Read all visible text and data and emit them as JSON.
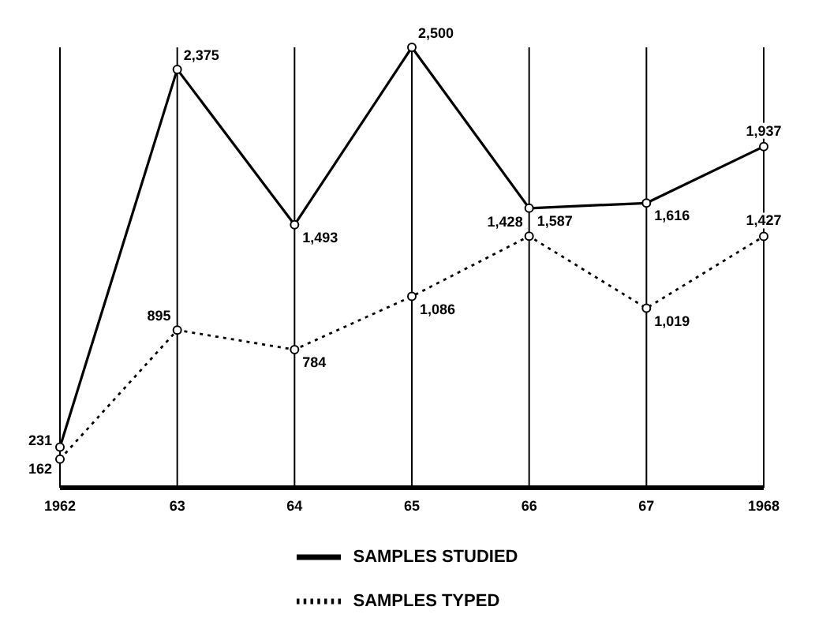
{
  "chart_data": {
    "type": "line",
    "categories": [
      "1962",
      "63",
      "64",
      "65",
      "66",
      "67",
      "1968"
    ],
    "series": [
      {
        "name": "SAMPLES STUDIED",
        "color": "#000000",
        "line_style": "solid",
        "values": [
          231,
          2375,
          1493,
          2500,
          1587,
          1616,
          1937
        ],
        "value_labels": [
          "231",
          "2,375",
          "1,493",
          "2,500",
          "1,587",
          "1,616",
          "1,937"
        ]
      },
      {
        "name": "SAMPLES TYPED",
        "color": "#000000",
        "line_style": "dotted",
        "values": [
          162,
          895,
          784,
          1086,
          1428,
          1019,
          1427
        ],
        "value_labels": [
          "162",
          "895",
          "784",
          "1,086",
          "1,428",
          "1,019",
          "1,427"
        ]
      }
    ],
    "marker": "circle",
    "grid": "x",
    "legend": "bottom"
  }
}
